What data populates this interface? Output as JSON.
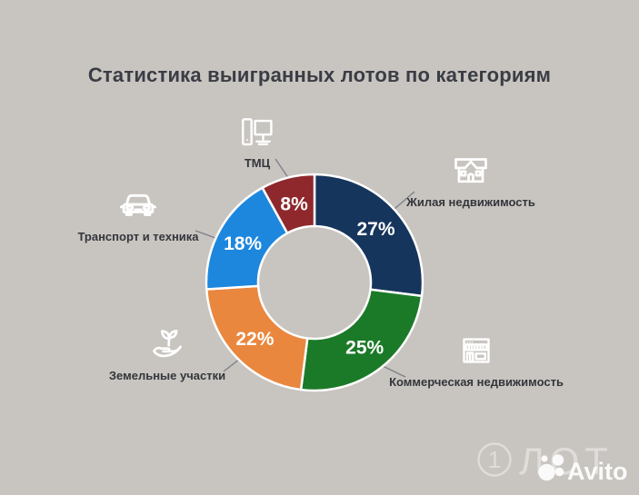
{
  "title": "Статистика выигранных лотов по категориям",
  "page": {
    "background_color": "#c8c4c0",
    "title_color": "#3a3d44"
  },
  "chart_data": {
    "type": "pie",
    "donut": true,
    "title": "Статистика выигранных лотов по категориям",
    "unit": "%",
    "total": 100,
    "direction": "clockwise",
    "start_angle_deg": 0,
    "legend_position": "around-chart-with-leader-lines",
    "categories": [
      "Жилая недвижимость",
      "Коммерческая недвижимость",
      "Земельные участки",
      "Транспорт и техника",
      "ТМЦ"
    ],
    "values": [
      27,
      25,
      22,
      18,
      8
    ],
    "segments": [
      {
        "label": "Жилая недвижимость",
        "value": 27,
        "percent_label": "27%",
        "color": "#16355c",
        "icon": "house-icon"
      },
      {
        "label": "Коммерческая недвижимость",
        "value": 25,
        "percent_label": "25%",
        "color": "#1b7a28",
        "icon": "storefront-icon"
      },
      {
        "label": "Земельные участки",
        "value": 22,
        "percent_label": "22%",
        "color": "#e9873e",
        "icon": "hand-plant-icon"
      },
      {
        "label": "Транспорт и техника",
        "value": 18,
        "percent_label": "18%",
        "color": "#1d87de",
        "icon": "car-icon"
      },
      {
        "label": "ТМЦ",
        "value": 8,
        "percent_label": "8%",
        "color": "#8e282c",
        "icon": "computer-icon"
      }
    ]
  },
  "watermark": {
    "lot_number": "1",
    "lot_text": "ЛОТ",
    "avito_text": "Avito"
  }
}
